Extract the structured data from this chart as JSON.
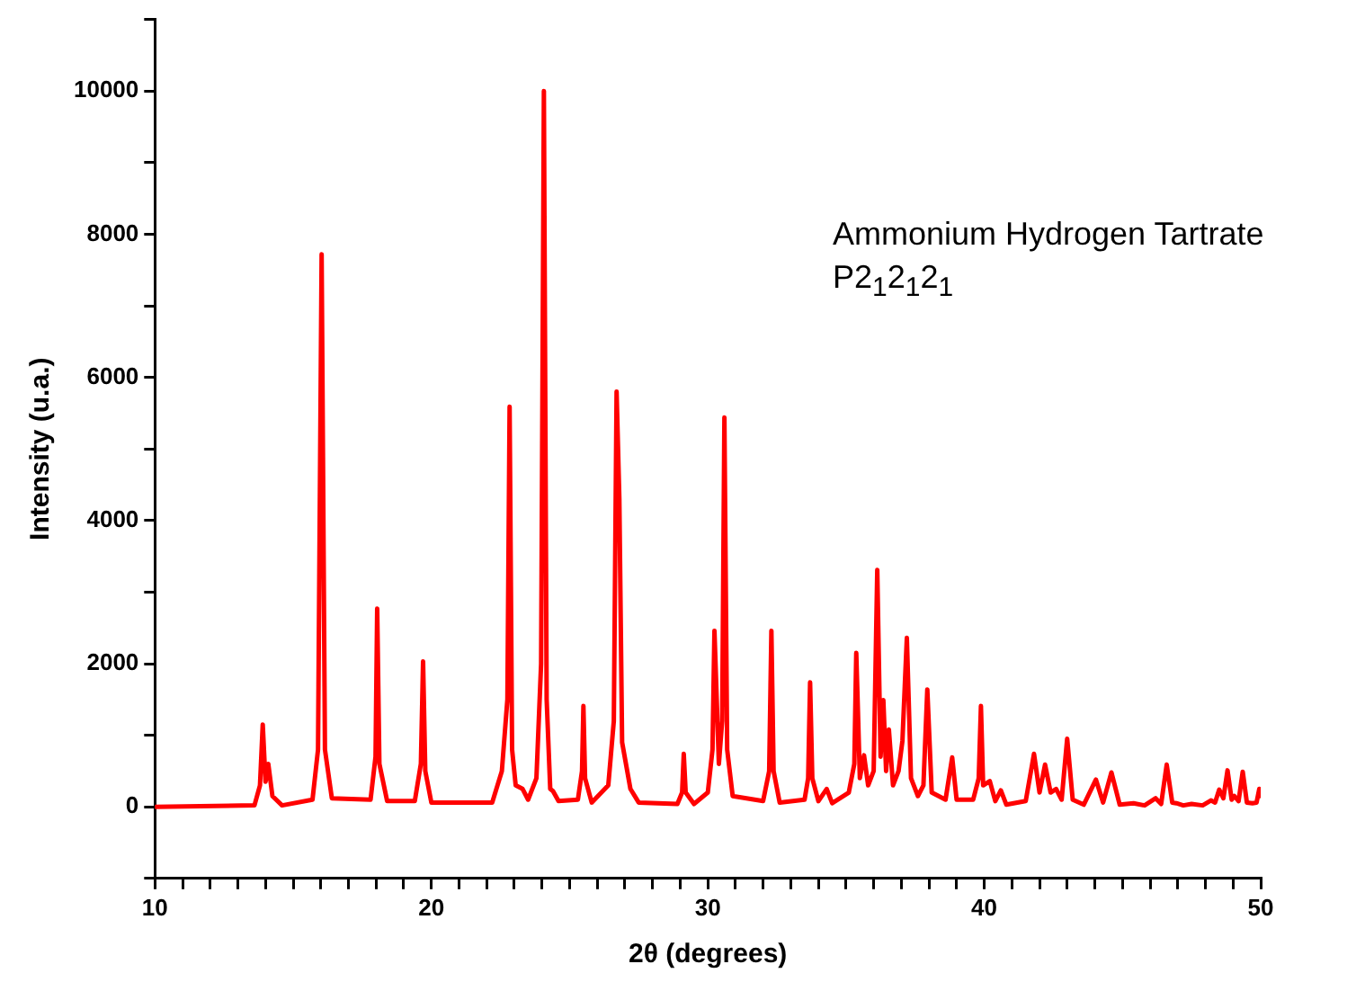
{
  "chart_data": {
    "type": "line",
    "xlabel": "2θ (degrees)",
    "ylabel": "Intensity (u.a.)",
    "annotations": [
      "Ammonium Hydrogen Tartrate",
      "P2$_{1}$2$_{1}$2$_{1}$"
    ],
    "xlim": [
      10,
      50
    ],
    "ylim": [
      -1000,
      11000
    ],
    "xticks": [
      10,
      {
        "value": 11,
        "label": null
      },
      {
        "value": 12,
        "label": null
      },
      {
        "value": 13,
        "label": null
      },
      {
        "value": 14,
        "label": null
      },
      {
        "value": 15,
        "label": null
      },
      {
        "value": 16,
        "label": null
      },
      {
        "value": 17,
        "label": null
      },
      {
        "value": 18,
        "label": null
      },
      {
        "value": 19,
        "label": null
      },
      20,
      {
        "value": 21,
        "label": null
      },
      {
        "value": 22,
        "label": null
      },
      {
        "value": 23,
        "label": null
      },
      {
        "value": 24,
        "label": null
      },
      {
        "value": 25,
        "label": null
      },
      {
        "value": 26,
        "label": null
      },
      {
        "value": 27,
        "label": null
      },
      {
        "value": 28,
        "label": null
      },
      {
        "value": 29,
        "label": null
      },
      30,
      {
        "value": 31,
        "label": null
      },
      {
        "value": 32,
        "label": null
      },
      {
        "value": 33,
        "label": null
      },
      {
        "value": 34,
        "label": null
      },
      {
        "value": 35,
        "label": null
      },
      {
        "value": 36,
        "label": null
      },
      {
        "value": 37,
        "label": null
      },
      {
        "value": 38,
        "label": null
      },
      {
        "value": 39,
        "label": null
      },
      40,
      {
        "value": 41,
        "label": null
      },
      {
        "value": 42,
        "label": null
      },
      {
        "value": 43,
        "label": null
      },
      {
        "value": 44,
        "label": null
      },
      {
        "value": 45,
        "label": null
      },
      {
        "value": 46,
        "label": null
      },
      {
        "value": 47,
        "label": null
      },
      {
        "value": 48,
        "label": null
      },
      {
        "value": 49,
        "label": null
      },
      50
    ],
    "yticks": [
      {
        "value": -1000,
        "label": null
      },
      0,
      {
        "value": 1000,
        "label": null
      },
      2000,
      {
        "value": 3000,
        "label": null
      },
      4000,
      {
        "value": 5000,
        "label": null
      },
      6000,
      {
        "value": 7000,
        "label": null
      },
      8000,
      {
        "value": 9000,
        "label": null
      },
      10000,
      {
        "value": 11000,
        "label": null
      }
    ],
    "grid": false,
    "legend": false,
    "marker": "none",
    "line_style": "solid",
    "series": [
      {
        "color": "#ff0000",
        "x": [
          10,
          13.6,
          13.8,
          13.9,
          14.0,
          14.1,
          14.25,
          14.6,
          15.7,
          15.9,
          16.03,
          16.15,
          16.4,
          17.8,
          17.98,
          18.04,
          18.12,
          18.4,
          19.4,
          19.62,
          19.7,
          19.78,
          20.0,
          22.2,
          22.55,
          22.69,
          22.75,
          22.83,
          22.92,
          23.05,
          23.3,
          23.5,
          23.8,
          23.97,
          24.07,
          24.17,
          24.3,
          24.4,
          24.6,
          25.3,
          25.45,
          25.5,
          25.56,
          25.8,
          26.4,
          26.6,
          26.7,
          26.8,
          26.9,
          27.2,
          27.5,
          28.9,
          29.07,
          29.13,
          29.2,
          29.5,
          30.0,
          30.17,
          30.24,
          30.4,
          30.52,
          30.6,
          30.7,
          30.9,
          32.0,
          32.22,
          32.3,
          32.38,
          32.6,
          33.5,
          33.63,
          33.7,
          33.78,
          34.0,
          34.3,
          34.5,
          35.1,
          35.3,
          35.37,
          35.5,
          35.65,
          35.8,
          36.0,
          36.13,
          36.25,
          36.35,
          36.45,
          36.55,
          36.7,
          36.9,
          37.04,
          37.2,
          37.35,
          37.6,
          37.8,
          37.94,
          38.1,
          38.6,
          38.84,
          39.0,
          39.6,
          39.8,
          39.88,
          39.96,
          40.2,
          40.4,
          40.6,
          40.8,
          41.5,
          41.8,
          42.0,
          42.2,
          42.4,
          42.6,
          42.8,
          43.0,
          43.2,
          43.6,
          44.04,
          44.3,
          44.6,
          44.9,
          45.4,
          45.8,
          46.2,
          46.4,
          46.6,
          46.8,
          46.95,
          47.2,
          47.5,
          47.9,
          48.2,
          48.35,
          48.5,
          48.65,
          48.8,
          48.95,
          49.05,
          49.2,
          49.35,
          49.5,
          49.7,
          49.85,
          49.95,
          50
        ],
        "values": [
          0,
          20,
          300,
          1150,
          350,
          600,
          150,
          20,
          100,
          800,
          7720,
          800,
          120,
          100,
          700,
          2770,
          600,
          80,
          80,
          600,
          2030,
          500,
          60,
          60,
          500,
          1200,
          1500,
          5590,
          800,
          300,
          250,
          100,
          400,
          2000,
          10000,
          1500,
          250,
          220,
          80,
          100,
          500,
          1410,
          400,
          60,
          300,
          1200,
          5800,
          4300,
          900,
          250,
          60,
          40,
          200,
          740,
          200,
          40,
          200,
          800,
          2460,
          600,
          1200,
          5440,
          800,
          150,
          80,
          500,
          2460,
          500,
          60,
          100,
          400,
          1740,
          400,
          80,
          250,
          50,
          200,
          600,
          2150,
          400,
          720,
          300,
          500,
          3310,
          700,
          1490,
          500,
          1080,
          300,
          500,
          920,
          2360,
          400,
          150,
          300,
          1640,
          200,
          100,
          690,
          100,
          100,
          400,
          1410,
          300,
          360,
          80,
          230,
          30,
          80,
          740,
          200,
          590,
          200,
          250,
          100,
          950,
          100,
          30,
          380,
          60,
          480,
          30,
          50,
          20,
          120,
          40,
          590,
          60,
          50,
          20,
          40,
          20,
          90,
          60,
          240,
          120,
          510,
          100,
          150,
          80,
          490,
          60,
          50,
          60,
          250,
          150
        ]
      }
    ]
  }
}
